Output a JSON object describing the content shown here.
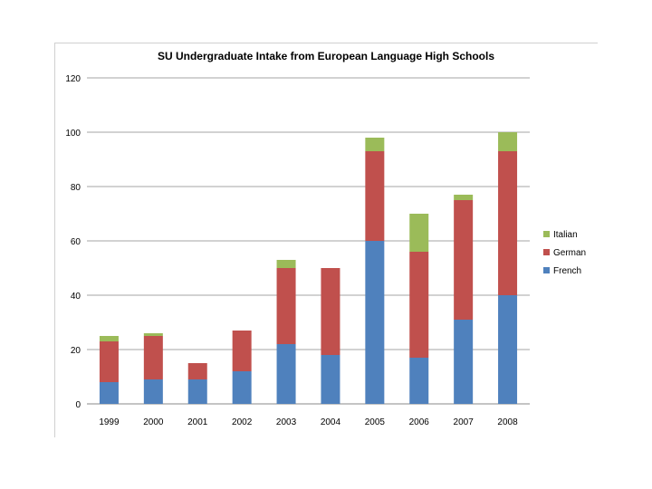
{
  "chart_data": {
    "type": "bar",
    "stacked": true,
    "title": "SU Undergraduate Intake from European Language High Schools",
    "xlabel": "",
    "ylabel": "",
    "categories": [
      "1999",
      "2000",
      "2001",
      "2002",
      "2003",
      "2004",
      "2005",
      "2006",
      "2007",
      "2008"
    ],
    "series": [
      {
        "name": "French",
        "color": "#4f81bd",
        "values": [
          8,
          9,
          9,
          12,
          22,
          18,
          60,
          17,
          31,
          40
        ]
      },
      {
        "name": "German",
        "color": "#c0504d",
        "values": [
          15,
          16,
          6,
          15,
          28,
          32,
          33,
          39,
          44,
          53
        ]
      },
      {
        "name": "Italian",
        "color": "#9bbb59",
        "values": [
          2,
          1,
          0,
          0,
          3,
          0,
          5,
          14,
          2,
          7
        ]
      }
    ],
    "ylim": [
      0,
      120
    ],
    "yticks": [
      0,
      20,
      40,
      60,
      80,
      100,
      120
    ],
    "grid": true,
    "legend_position": "right"
  }
}
